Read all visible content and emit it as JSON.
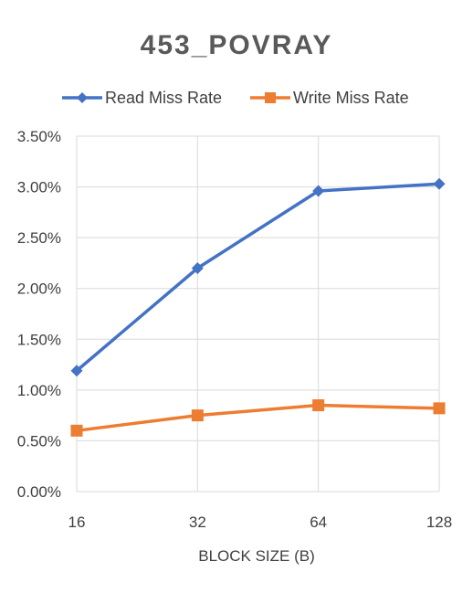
{
  "chart_data": {
    "type": "line",
    "title": "453_POVRAY",
    "xlabel": "BLOCK SIZE (B)",
    "ylabel": "",
    "categories": [
      "16",
      "32",
      "64",
      "128"
    ],
    "y_ticks": [
      "0.00%",
      "0.50%",
      "1.00%",
      "1.50%",
      "2.00%",
      "2.50%",
      "3.00%",
      "3.50%"
    ],
    "ylim": [
      0,
      0.035
    ],
    "grid": true,
    "legend_position": "top",
    "series": [
      {
        "name": "Read Miss Rate",
        "values": [
          0.0119,
          0.022,
          0.0296,
          0.0303
        ],
        "color": "#4472c4",
        "marker": "diamond"
      },
      {
        "name": "Write Miss Rate",
        "values": [
          0.006,
          0.0075,
          0.0085,
          0.0082
        ],
        "color": "#ed7d31",
        "marker": "square"
      }
    ]
  }
}
